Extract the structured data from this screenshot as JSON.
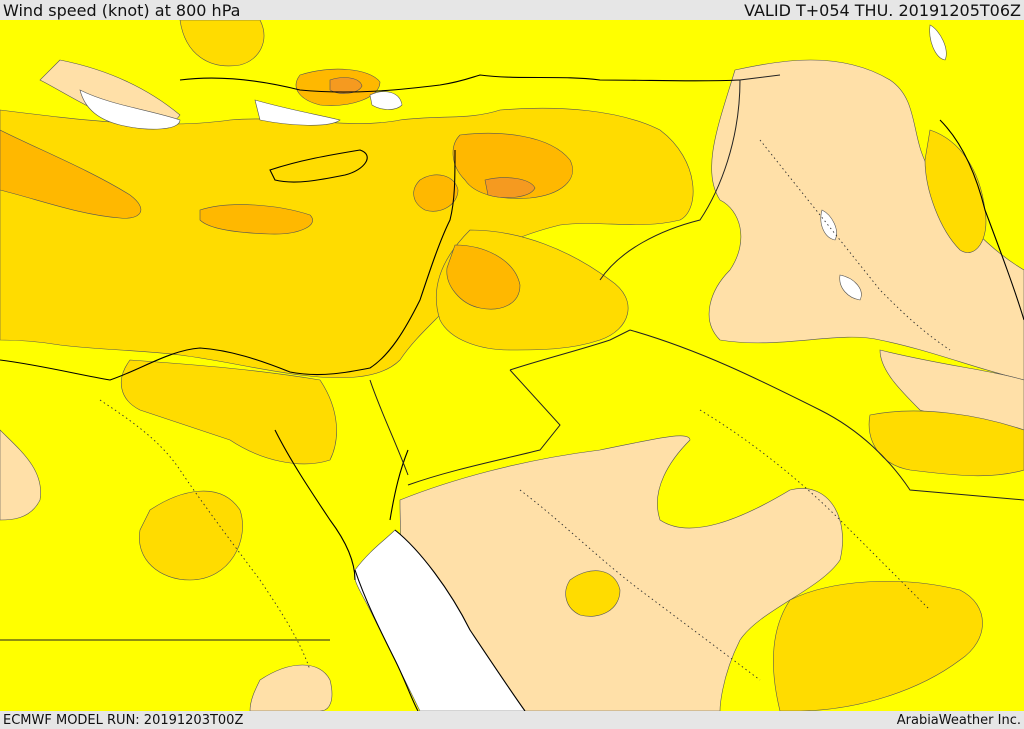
{
  "header": {
    "title": "Wind speed (knot) at 800 hPa",
    "valid": "VALID T+054 THU. 20191205T06Z"
  },
  "footer": {
    "model_run": "ECMWF MODEL RUN: 20191203T00Z",
    "credit": "ArabiaWeather Inc."
  },
  "palette": {
    "sea_water": "#ffffff",
    "band_lowest": "#ffe0a8",
    "band_low": "#ffff00",
    "band_mid": "#ffdc00",
    "band_high": "#ffb800",
    "band_highest": "#f59a20",
    "coastline": "#000000",
    "border": "#222222"
  }
}
